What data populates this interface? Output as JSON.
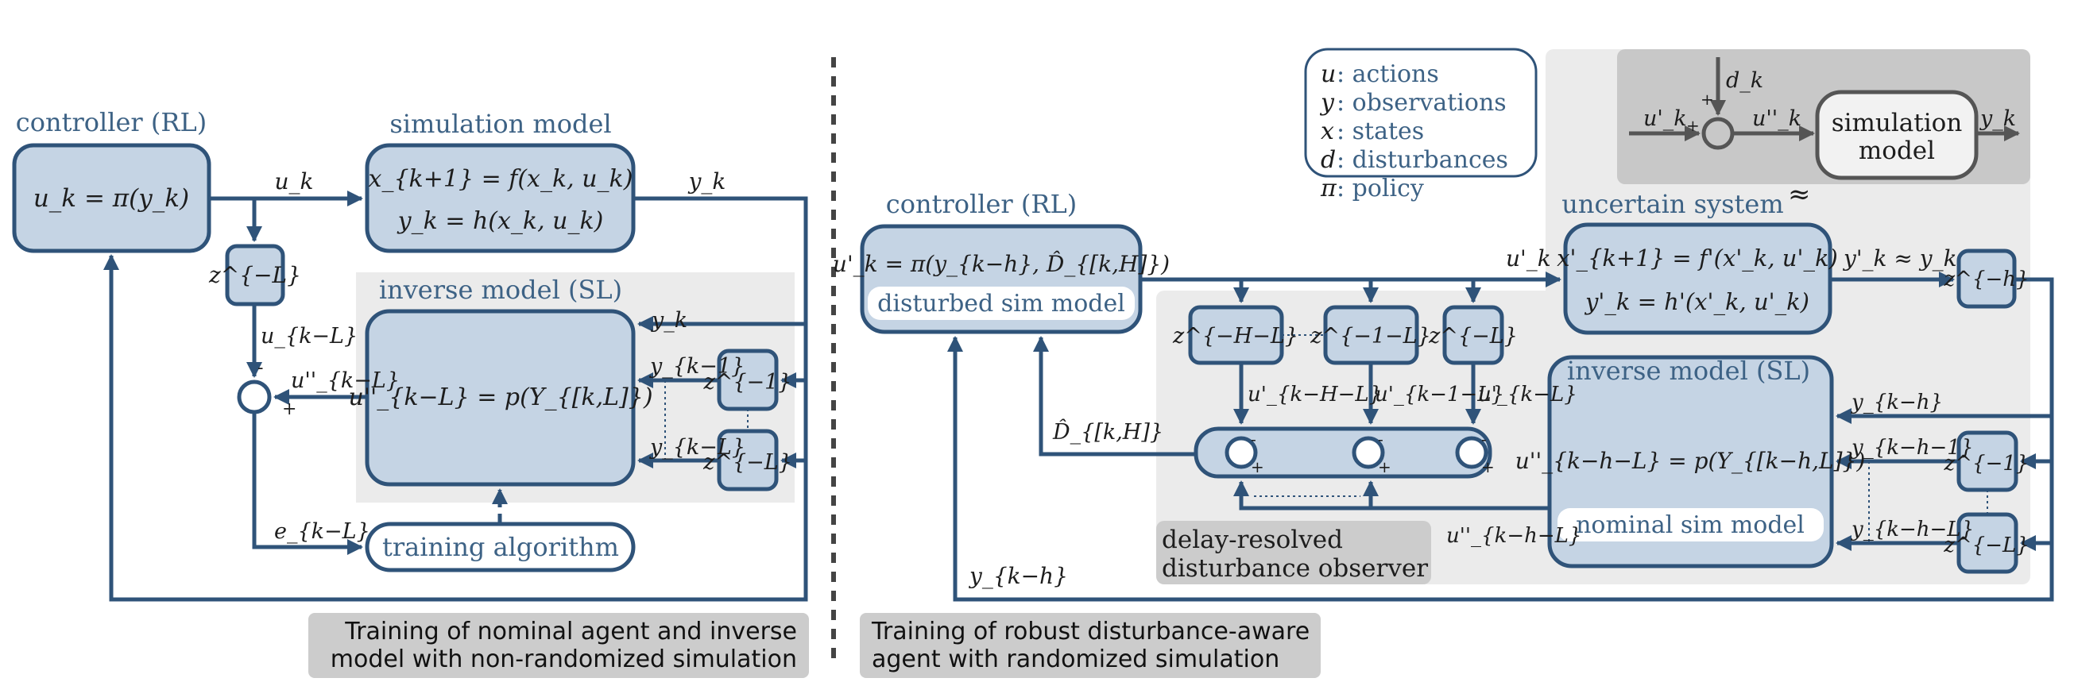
{
  "left": {
    "controller_title": "controller (RL)",
    "controller_eq": "u_k = π(y_k)",
    "sim_title": "simulation model",
    "sim_eq1": "x_{k+1} = f(x_k, u_k)",
    "sim_eq2": "y_k = h(x_k, u_k)",
    "inv_title": "inverse model (SL)",
    "inv_eq": "u''_{k−L} = p(Y_{[k,L]})",
    "delay_L": "z^{−L}",
    "delay_1": "z^{−1}",
    "training": "training algorithm",
    "sig_uk": "u_k",
    "sig_yk_out": "y_k",
    "sig_uk_L": "u_{k−L}",
    "sig_upp": "u''_{k−L}",
    "sig_yk": "y_k",
    "sig_yk1": "y_{k−1}",
    "sig_ykL": "y_{k−L}",
    "sig_ekL": "e_{k−L}",
    "minus": "-",
    "plus": "+",
    "caption_line1": "Training of nominal agent and inverse",
    "caption_line2": "model with non-randomized simulation"
  },
  "right": {
    "legend": [
      {
        "sym": "u",
        "desc": ": actions"
      },
      {
        "sym": "y",
        "desc": ": observations"
      },
      {
        "sym": "x",
        "desc": ": states"
      },
      {
        "sym": "d",
        "desc": ": disturbances"
      },
      {
        "sym": "π",
        "desc": ": policy"
      }
    ],
    "inset_sim": [
      "simulation",
      "model"
    ],
    "inset_dk": "d_k",
    "inset_uk": "u'_k",
    "inset_upp": "u''_k",
    "inset_yk": "y_k",
    "controller_title": "controller (RL)",
    "controller_eq": "u'_k = π(y_{k−h}, D̂_{[k,H]})",
    "disturbed_label": "disturbed sim model",
    "uncertain_title": "uncertain system",
    "approx_symbol": "≈",
    "unc_eq1": "x'_{k+1} = f'(x'_k, u'_k)",
    "unc_eq2": "y'_k = h'(x'_k, u'_k)",
    "sig_uk": "u'_k",
    "sig_yk": "y'_k ≈ y_k",
    "delay_h": "z^{−h}",
    "delay_HL": "z^{−H−L}",
    "delay_1L": "z^{−1−L}",
    "delay_L": "z^{−L}",
    "delay_1": "z^{−1}",
    "delay_L2": "z^{−L}",
    "sig_u_HL": "u'_{k−H−L}",
    "sig_u_1L": "u'_{k−1−L}",
    "sig_u_L": "u'_{k−L}",
    "sig_Dhat": "D̂_{[k,H]}",
    "sig_upp": "u''_{k−h−L}",
    "sig_ykh": "y_{k−h}",
    "sig_ykh1": "y_{k−h−1}",
    "sig_ykhL": "y_{k−h−L}",
    "sig_ykh_bottom": "y_{k−h}",
    "inv_title": "inverse model (SL)",
    "inv_eq": "u''_{k−h−L} = p(Y_{[k−h,L]})",
    "nominal_label": "nominal sim model",
    "observer_line1": "delay-resolved",
    "observer_line2": "disturbance observer",
    "caption_line1": "Training of robust disturbance-aware",
    "caption_line2": "agent with randomized simulation"
  }
}
